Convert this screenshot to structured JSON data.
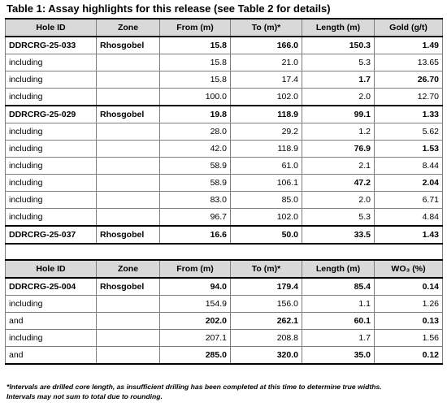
{
  "title": "Table 1: Assay highlights for this release (see Table 2 for details)",
  "headers1": [
    "Hole ID",
    "Zone",
    "From (m)",
    "To (m)*",
    "Length (m)",
    "Gold (g/t)"
  ],
  "headers2": [
    "Hole ID",
    "Zone",
    "From (m)",
    "To (m)*",
    "Length (m)",
    "WO₃ (%)"
  ],
  "block1": [
    {
      "id": "DDRCRG-25-033",
      "zone": "Rhosgobel",
      "from": "15.8",
      "to": "166.0",
      "length": "150.3",
      "grade": "1.49"
    },
    {
      "id": "including",
      "zone": "",
      "from": "15.8",
      "to": "21.0",
      "length": "5.3",
      "grade": "13.65"
    },
    {
      "id": "including",
      "zone": "",
      "from": "15.8",
      "to": "17.4",
      "length": "1.7",
      "grade": "26.70"
    },
    {
      "id": "including",
      "zone": "",
      "from": "100.0",
      "to": "102.0",
      "length": "2.0",
      "grade": "12.70"
    },
    {
      "id": "DDRCRG-25-029",
      "zone": "Rhosgobel",
      "from": "19.8",
      "to": "118.9",
      "length": "99.1",
      "grade": "1.33"
    },
    {
      "id": "including",
      "zone": "",
      "from": "28.0",
      "to": "29.2",
      "length": "1.2",
      "grade": "5.62"
    },
    {
      "id": "including",
      "zone": "",
      "from": "42.0",
      "to": "118.9",
      "length": "76.9",
      "grade": "1.53"
    },
    {
      "id": "including",
      "zone": "",
      "from": "58.9",
      "to": "61.0",
      "length": "2.1",
      "grade": "8.44"
    },
    {
      "id": "including",
      "zone": "",
      "from": "58.9",
      "to": "106.1",
      "length": "47.2",
      "grade": "2.04"
    },
    {
      "id": "including",
      "zone": "",
      "from": "83.0",
      "to": "85.0",
      "length": "2.0",
      "grade": "6.71"
    },
    {
      "id": "including",
      "zone": "",
      "from": "96.7",
      "to": "102.0",
      "length": "5.3",
      "grade": "4.84"
    },
    {
      "id": "DDRCRG-25-037",
      "zone": "Rhosgobel",
      "from": "16.6",
      "to": "50.0",
      "length": "33.5",
      "grade": "1.43"
    }
  ],
  "block2": [
    {
      "id": "DDRCRG-25-004",
      "zone": "Rhosgobel",
      "from": "94.0",
      "to": "179.4",
      "length": "85.4",
      "grade": "0.14"
    },
    {
      "id": "including",
      "zone": "",
      "from": "154.9",
      "to": "156.0",
      "length": "1.1",
      "grade": "1.26"
    },
    {
      "id": "and",
      "zone": "",
      "from": "202.0",
      "to": "262.1",
      "length": "60.1",
      "grade": "0.13"
    },
    {
      "id": "including",
      "zone": "",
      "from": "207.1",
      "to": "208.8",
      "length": "1.7",
      "grade": "1.56"
    },
    {
      "id": "and",
      "zone": "",
      "from": "285.0",
      "to": "320.0",
      "length": "35.0",
      "grade": "0.12"
    }
  ],
  "footnote1": "*Intervals are drilled core length, as insufficient drilling has been completed at this time to determine true widths.",
  "footnote2": "Intervals may not sum to total due to rounding."
}
